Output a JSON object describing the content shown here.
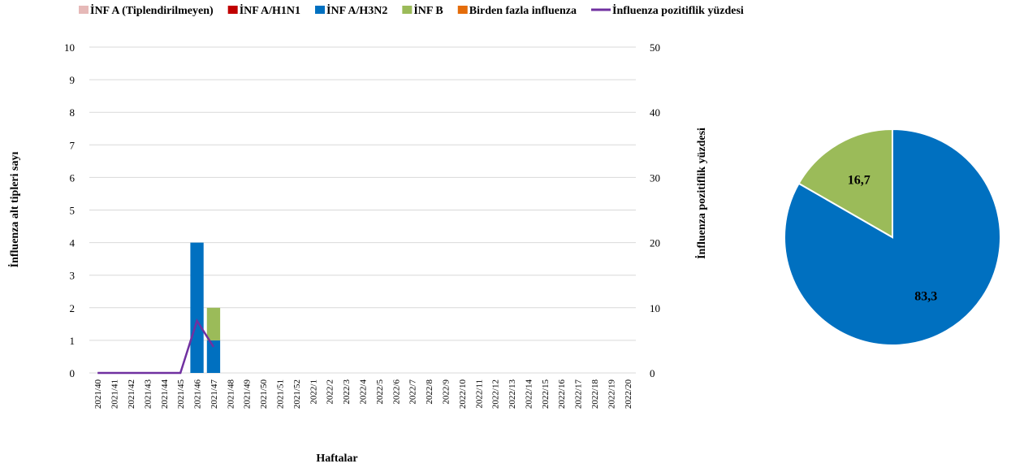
{
  "chart_data": [
    {
      "type": "bar",
      "categories": [
        "2021/40",
        "2021/41",
        "2021/42",
        "2021/43",
        "2021/44",
        "2021/45",
        "2021/46",
        "2021/47",
        "2021/48",
        "2021/49",
        "2021/50",
        "2021/51",
        "2021/52",
        "2022/1",
        "2022/2",
        "2022/3",
        "2022/4",
        "2022/5",
        "2022/6",
        "2022/7",
        "2022/8",
        "2022/9",
        "2022/10",
        "2022/11",
        "2022/12",
        "2022/13",
        "2022/14",
        "2022/15",
        "2022/16",
        "2022/17",
        "2022/18",
        "2022/19",
        "2022/20"
      ],
      "series": [
        {
          "name": "İNF A (Tiplendirilmeyen)",
          "color": "#e6b9b8",
          "values": [
            0,
            0,
            0,
            0,
            0,
            0,
            0,
            0,
            null,
            null,
            null,
            null,
            null,
            null,
            null,
            null,
            null,
            null,
            null,
            null,
            null,
            null,
            null,
            null,
            null,
            null,
            null,
            null,
            null,
            null,
            null,
            null,
            null
          ]
        },
        {
          "name": "İNF A/H1N1",
          "color": "#c00000",
          "values": [
            0,
            0,
            0,
            0,
            0,
            0,
            0,
            0,
            null,
            null,
            null,
            null,
            null,
            null,
            null,
            null,
            null,
            null,
            null,
            null,
            null,
            null,
            null,
            null,
            null,
            null,
            null,
            null,
            null,
            null,
            null,
            null,
            null
          ]
        },
        {
          "name": "İNF A/H3N2",
          "color": "#0070c0",
          "values": [
            0,
            0,
            0,
            0,
            0,
            0,
            4,
            1,
            null,
            null,
            null,
            null,
            null,
            null,
            null,
            null,
            null,
            null,
            null,
            null,
            null,
            null,
            null,
            null,
            null,
            null,
            null,
            null,
            null,
            null,
            null,
            null,
            null
          ]
        },
        {
          "name": "İNF B",
          "color": "#9bbb59",
          "values": [
            0,
            0,
            0,
            0,
            0,
            0,
            0,
            1,
            null,
            null,
            null,
            null,
            null,
            null,
            null,
            null,
            null,
            null,
            null,
            null,
            null,
            null,
            null,
            null,
            null,
            null,
            null,
            null,
            null,
            null,
            null,
            null,
            null
          ]
        },
        {
          "name": "Birden fazla influenza",
          "color": "#e46c0a",
          "values": [
            0,
            0,
            0,
            0,
            0,
            0,
            0,
            0,
            null,
            null,
            null,
            null,
            null,
            null,
            null,
            null,
            null,
            null,
            null,
            null,
            null,
            null,
            null,
            null,
            null,
            null,
            null,
            null,
            null,
            null,
            null,
            null,
            null
          ]
        },
        {
          "name": "İnfluenza pozitiflik yüzdesi",
          "color": "#7030a0",
          "type": "line",
          "axis": "y2",
          "values": [
            0,
            0,
            0,
            0,
            0,
            0,
            8,
            4,
            null,
            null,
            null,
            null,
            null,
            null,
            null,
            null,
            null,
            null,
            null,
            null,
            null,
            null,
            null,
            null,
            null,
            null,
            null,
            null,
            null,
            null,
            null,
            null,
            null
          ]
        }
      ],
      "stacked": true,
      "ylabel": "İnfluenza alt tipleri sayı",
      "y2label": "İnfluenza pozitiflik yüzdesi",
      "xlabel": "Haftalar",
      "ylim": [
        0,
        10
      ],
      "yticks": [
        0,
        1,
        2,
        3,
        4,
        5,
        6,
        7,
        8,
        9,
        10
      ],
      "y2lim": [
        0,
        50
      ],
      "y2ticks": [
        0,
        10,
        20,
        30,
        40,
        50
      ],
      "grid": true,
      "legend": "top"
    },
    {
      "type": "pie",
      "values": [
        83.3,
        16.7
      ],
      "value_labels": [
        "83,3",
        "16,7"
      ],
      "colors": [
        "#0070c0",
        "#9bbb59"
      ]
    }
  ]
}
